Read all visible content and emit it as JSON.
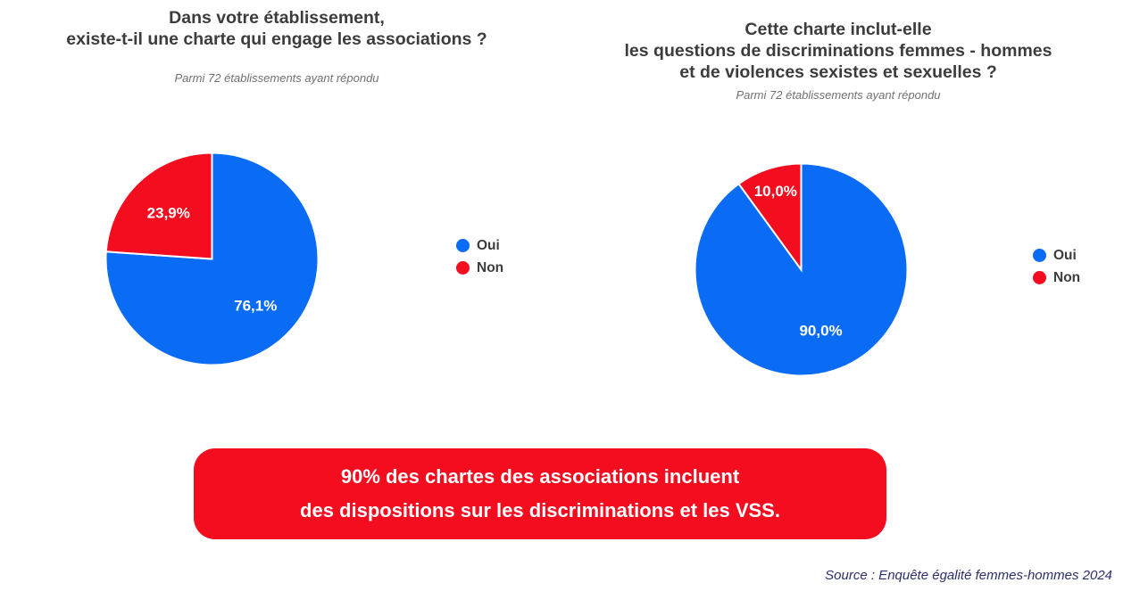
{
  "charts_text": [
    {
      "title_lines": [
        "Dans votre établissement,",
        "existe-t-il une charte qui engage les associations ?"
      ],
      "subtitle": "Parmi 72 établissements ayant répondu"
    },
    {
      "title_lines": [
        "Cette charte inclut-elle",
        "les questions de discriminations femmes - hommes",
        "et de violences sexistes et sexuelles ?"
      ],
      "subtitle": "Parmi 72 établissements ayant répondu"
    }
  ],
  "chart_data": [
    {
      "type": "pie",
      "title": "Dans votre établissement, existe-t-il une charte qui engage les associations ?",
      "subtitle": "Parmi 72 établissements ayant répondu",
      "categories": [
        "Oui",
        "Non"
      ],
      "values": [
        76.1,
        23.9
      ],
      "labels": [
        "76,1%",
        "23,9%"
      ],
      "colors": [
        "#0a6cf5",
        "#f40d1f"
      ],
      "legend_position": "right"
    },
    {
      "type": "pie",
      "title": "Cette charte inclut-elle les questions de discriminations femmes - hommes et de violences sexistes et sexuelles ?",
      "subtitle": "Parmi 72 établissements ayant répondu",
      "categories": [
        "Oui",
        "Non"
      ],
      "values": [
        90.0,
        10.0
      ],
      "labels": [
        "90,0%",
        "10,0%"
      ],
      "colors": [
        "#0a6cf5",
        "#f40d1f"
      ],
      "legend_position": "right"
    }
  ],
  "banner": {
    "line1": "90% des chartes des associations incluent",
    "line2": "des dispositions sur les discriminations et les VSS."
  },
  "source": "Source : Enquête égalité femmes-hommes 2024"
}
